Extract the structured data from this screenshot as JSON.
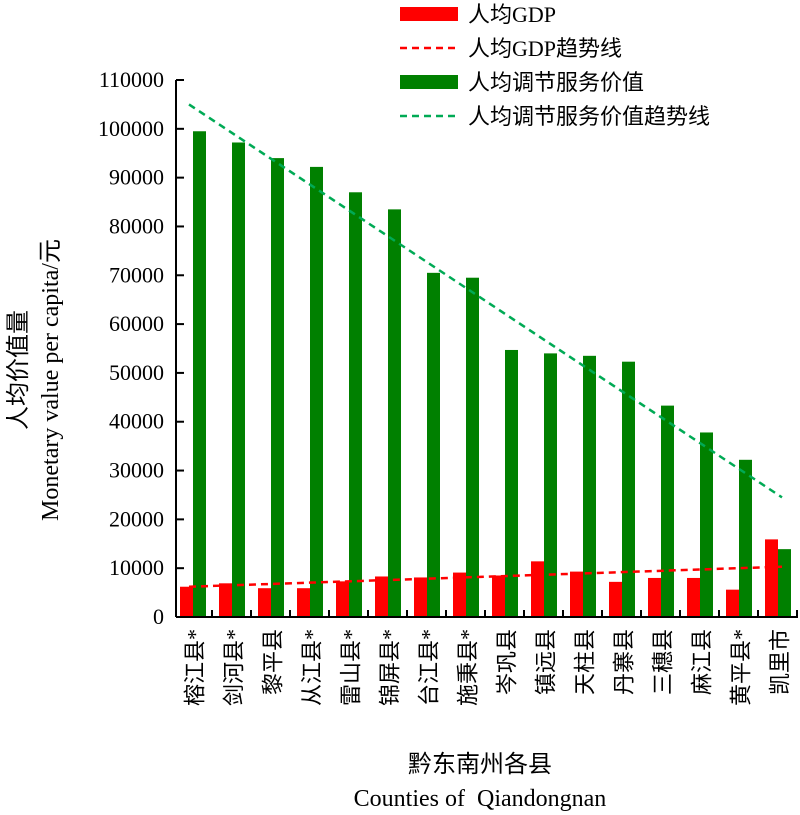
{
  "chart_data": {
    "type": "bar",
    "categories": [
      "榕江县*",
      "剑河县*",
      "黎平县",
      "从江县*",
      "雷山县*",
      "锦屏县*",
      "台江县*",
      "施秉县*",
      "岑巩县",
      "镇远县",
      "天柱县",
      "丹寨县",
      "三穗县",
      "麻江县",
      "黄平县*",
      "凯里市"
    ],
    "series": [
      {
        "name": "人均GDP",
        "color": "#ff0000",
        "values": [
          6200,
          6900,
          5900,
          5900,
          7300,
          8300,
          8100,
          9100,
          8500,
          11400,
          9300,
          7200,
          8000,
          8000,
          5600,
          15900
        ]
      },
      {
        "name": "人均调节服务价值",
        "color": "#008000",
        "values": [
          99500,
          97200,
          94000,
          92200,
          87000,
          83500,
          70500,
          69500,
          54700,
          54000,
          53500,
          52300,
          43300,
          37800,
          32200,
          13900
        ]
      }
    ],
    "trendlines": [
      {
        "name": "人均GDP趋势线",
        "color": "#ff0000",
        "start": 6200,
        "end": 10300
      },
      {
        "name": "人均调节服务价值趋势线",
        "color": "#00aa55",
        "start": 105000,
        "end": 24500
      }
    ],
    "yticks": [
      "0",
      "10000",
      "20000",
      "30000",
      "40000",
      "50000",
      "60000",
      "70000",
      "80000",
      "90000",
      "100000",
      "110000"
    ],
    "ylim": [
      0,
      110000
    ],
    "ylabel_cn": "人均价值量",
    "ylabel_en": "Monetary value per capita/元",
    "xlabel_cn": "黔东南州各县",
    "xlabel_en": "Counties of  Qiandongnan",
    "legend_position": "top-right",
    "grid": false
  }
}
